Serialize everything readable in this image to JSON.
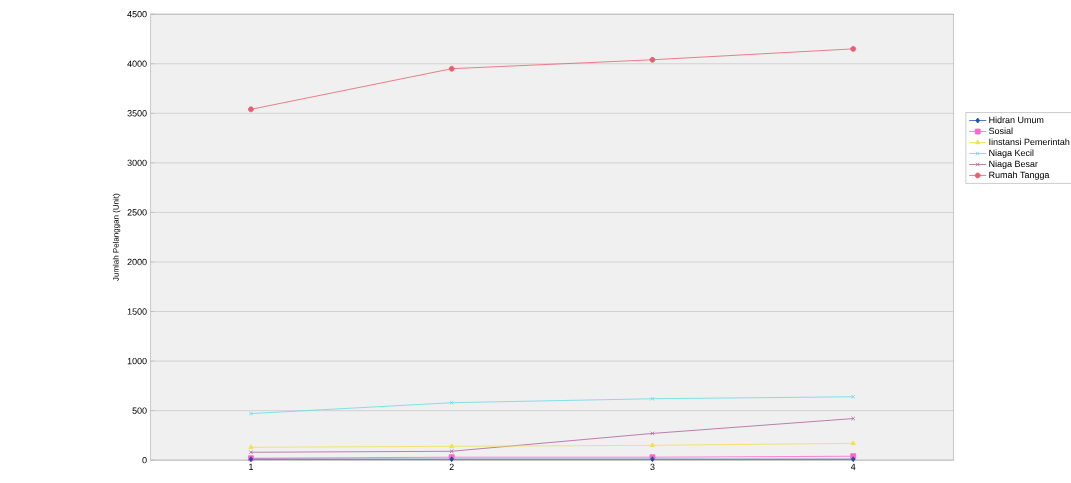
{
  "chart_data": {
    "type": "line",
    "ylabel": "Jumlah Pelanggan (Unit)",
    "categories": [
      "1",
      "2",
      "3",
      "4"
    ],
    "series": [
      {
        "name": "Hidran Umum",
        "color": "#1f4fa8",
        "marker": "diamond",
        "values": [
          10,
          10,
          10,
          10
        ]
      },
      {
        "name": "Sosial",
        "color": "#ff66cc",
        "marker": "square",
        "values": [
          20,
          30,
          30,
          40
        ]
      },
      {
        "name": "Iinstansi Pemerintah",
        "color": "#f0e050",
        "marker": "triangle",
        "values": [
          130,
          140,
          150,
          170
        ]
      },
      {
        "name": "Niaga Kecil",
        "color": "#66d9e8",
        "marker": "cross",
        "values": [
          470,
          580,
          620,
          640
        ]
      },
      {
        "name": "Niaga Besar",
        "color": "#b0609a",
        "marker": "cross",
        "values": [
          80,
          90,
          270,
          420
        ]
      },
      {
        "name": "Rumah Tangga",
        "color": "#e86070",
        "marker": "circle",
        "values": [
          3540,
          3950,
          4040,
          4150
        ]
      }
    ],
    "ylim": [
      0,
      4500
    ],
    "yticks": [
      0,
      500,
      1000,
      1500,
      2000,
      2500,
      3000,
      3500,
      4000,
      4500
    ],
    "grid": "y",
    "legend": "right",
    "line_style": "solid"
  }
}
